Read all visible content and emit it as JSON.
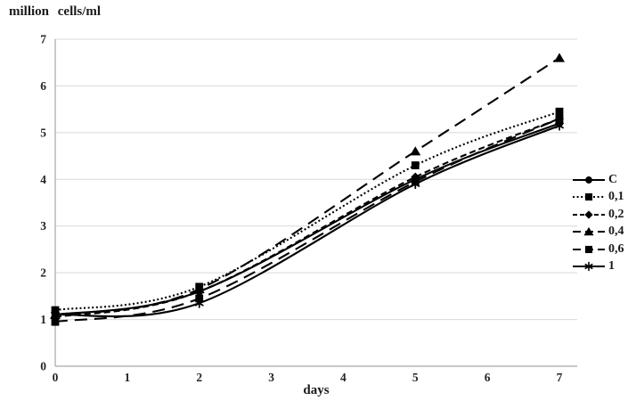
{
  "page": {
    "background": "#ffffff"
  },
  "chart_data": {
    "type": "line",
    "title": "million cells/ml",
    "xlabel": "days",
    "ylabel": "",
    "x": [
      0,
      2,
      5,
      7
    ],
    "series": [
      {
        "name": "C",
        "marker": "circle",
        "line": "solid",
        "values": [
          1.1,
          1.6,
          4.0,
          5.2
        ]
      },
      {
        "name": "0,1",
        "marker": "square",
        "line": "dotted",
        "values": [
          1.2,
          1.7,
          4.3,
          5.45
        ]
      },
      {
        "name": "0,2",
        "marker": "diamond",
        "line": "dash",
        "values": [
          1.05,
          1.6,
          4.05,
          5.3
        ]
      },
      {
        "name": "0,4",
        "marker": "triangle",
        "line": "longdash",
        "values": [
          1.1,
          1.65,
          4.6,
          6.6
        ]
      },
      {
        "name": "0,6",
        "marker": "square",
        "line": "longdash",
        "values": [
          0.95,
          1.45,
          3.95,
          5.3
        ]
      },
      {
        "name": "1",
        "marker": "asterisk",
        "line": "solid",
        "values": [
          1.1,
          1.35,
          3.9,
          5.15
        ]
      }
    ],
    "xlim": [
      0,
      7
    ],
    "ylim": [
      0,
      7
    ],
    "xticks": [
      0,
      1,
      2,
      3,
      4,
      5,
      6,
      7
    ],
    "yticks": [
      0,
      1,
      2,
      3,
      4,
      5,
      6,
      7
    ],
    "grid": "horizontal",
    "smooth_lines": true,
    "legend_position": "right",
    "colors": {
      "series": "#000000",
      "grid": "#d9d9d9",
      "axis": "#a6a6a6",
      "text": "#262626"
    }
  }
}
